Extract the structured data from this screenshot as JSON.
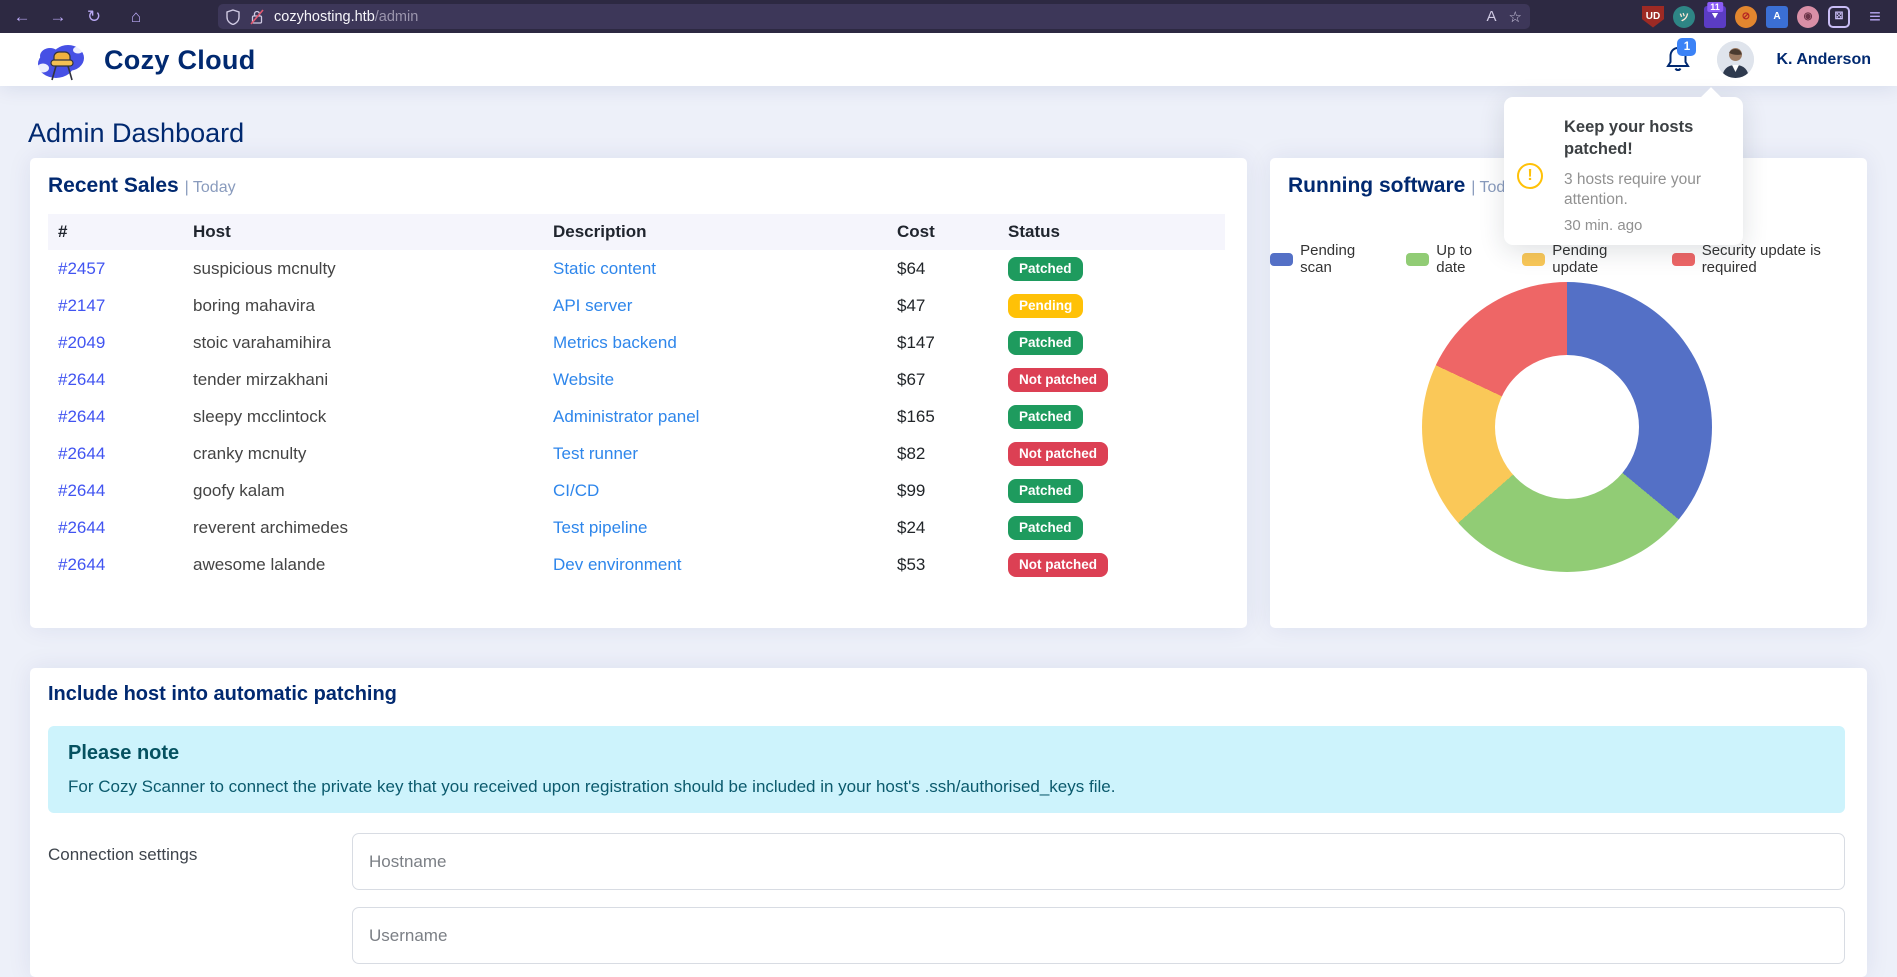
{
  "browser": {
    "back_icon": "←",
    "forward_icon": "→",
    "reload_icon": "↻",
    "home_icon": "⌂",
    "url_domain": "cozyhosting.htb",
    "url_path": "/admin",
    "translate_glyph": "A",
    "bookmark_star_glyph": "☆",
    "menu_glyph": "≡",
    "extensions": [
      {
        "name": "ublock-shield-icon",
        "glyph": "UD",
        "shape": "shield",
        "bg": "#9d2a24",
        "fg": "#ffffff",
        "badge": ""
      },
      {
        "name": "hacker-face-icon",
        "glyph": "ツ",
        "shape": "circle",
        "bg": "#2e8585",
        "fg": "#ffe9d6",
        "badge": ""
      },
      {
        "name": "downloads-arrows-icon",
        "glyph": "⯆",
        "shape": "tag",
        "bg": "#5b3cc4",
        "fg": "#ffffff",
        "badge": "11"
      },
      {
        "name": "noscript-ball-icon",
        "glyph": "⊘",
        "shape": "circle",
        "bg": "#e2862f",
        "fg": "#b32424",
        "badge": ""
      },
      {
        "name": "translate-extension-icon",
        "glyph": "A",
        "shape": "tag",
        "bg": "#3b6fd4",
        "fg": "#ffffff",
        "badge": ""
      },
      {
        "name": "avatar-extension-icon",
        "glyph": "◉",
        "shape": "circle",
        "bg": "#d98fa6",
        "fg": "#6b3347",
        "badge": ""
      },
      {
        "name": "extensions-puzzle-icon",
        "glyph": "⚄",
        "shape": "outline",
        "bg": "transparent",
        "fg": "#c9bdf5",
        "badge": ""
      }
    ]
  },
  "header": {
    "brand": "Cozy Cloud",
    "notification_count": "1",
    "user_name": "K. Anderson"
  },
  "notification_popup": {
    "title": "Keep your hosts patched!",
    "message": "3 hosts require your attention.",
    "time": "30 min. ago",
    "icon_color": "#ffc107"
  },
  "page_title": "Admin Dashboard",
  "recent_sales": {
    "title": "Recent Sales",
    "filter": "| Today",
    "columns": [
      "#",
      "Host",
      "Description",
      "Cost",
      "Status"
    ],
    "rows": [
      {
        "id": "#2457",
        "host": "suspicious mcnulty",
        "description": "Static content",
        "cost": "$64",
        "status": "Patched",
        "status_type": "success"
      },
      {
        "id": "#2147",
        "host": "boring mahavira",
        "description": "API server",
        "cost": "$47",
        "status": "Pending",
        "status_type": "warning"
      },
      {
        "id": "#2049",
        "host": "stoic varahamihira",
        "description": "Metrics backend",
        "cost": "$147",
        "status": "Patched",
        "status_type": "success"
      },
      {
        "id": "#2644",
        "host": "tender mirzakhani",
        "description": "Website",
        "cost": "$67",
        "status": "Not patched",
        "status_type": "danger"
      },
      {
        "id": "#2644",
        "host": "sleepy mcclintock",
        "description": "Administrator panel",
        "cost": "$165",
        "status": "Patched",
        "status_type": "success"
      },
      {
        "id": "#2644",
        "host": "cranky mcnulty",
        "description": "Test runner",
        "cost": "$82",
        "status": "Not patched",
        "status_type": "danger"
      },
      {
        "id": "#2644",
        "host": "goofy kalam",
        "description": "CI/CD",
        "cost": "$99",
        "status": "Patched",
        "status_type": "success"
      },
      {
        "id": "#2644",
        "host": "reverent archimedes",
        "description": "Test pipeline",
        "cost": "$24",
        "status": "Patched",
        "status_type": "success"
      },
      {
        "id": "#2644",
        "host": "awesome lalande",
        "description": "Dev environment",
        "cost": "$53",
        "status": "Not patched",
        "status_type": "danger"
      }
    ]
  },
  "running_software": {
    "title": "Running software",
    "filter": "| Today"
  },
  "chart_data": {
    "type": "pie",
    "donut": true,
    "title": "Running software | Today",
    "labels": [
      "Pending scan",
      "Up to date",
      "Pending update",
      "Security update is required"
    ],
    "values": [
      36,
      27.5,
      18.5,
      18
    ],
    "unit": "percent",
    "colors": [
      "#5470c6",
      "#91cc75",
      "#fac858",
      "#ee6666"
    ],
    "legend_position": "top"
  },
  "patching": {
    "title": "Include host into automatic patching",
    "note_title": "Please note",
    "note_body": "For Cozy Scanner to connect the private key that you received upon registration should be included in your host's .ssh/authorised_keys file.",
    "form_label": "Connection settings",
    "hostname_placeholder": "Hostname",
    "username_placeholder": "Username"
  },
  "theme": {
    "navy": "#012970",
    "muted": "#899bbd",
    "id_link": "#4154f1",
    "desc_link": "#2e86eb",
    "badge_success": "#1e9b5e",
    "badge_warning": "#ffc107",
    "badge_danger": "#dc4054",
    "alert_bg": "#cdf3fc",
    "alert_text": "#055160",
    "page_bg": "#edf0f9",
    "browser_bar_bg": "#2d2942"
  }
}
